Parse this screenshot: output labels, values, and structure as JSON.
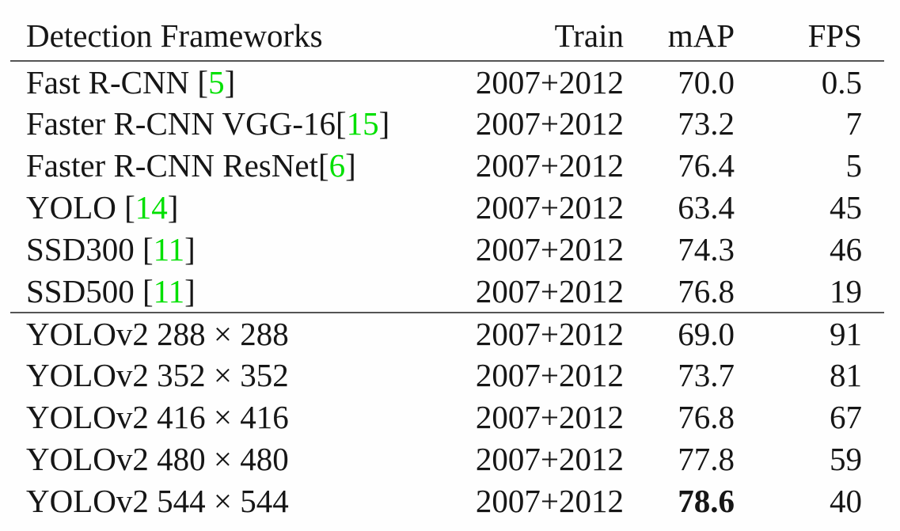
{
  "table": {
    "columns": [
      "Detection Frameworks",
      "Train",
      "mAP",
      "FPS"
    ],
    "rows": [
      {
        "pre": "Fast R-CNN [",
        "cite": "5",
        "post": "]",
        "train": "2007+2012",
        "map": "70.0",
        "fps": "0.5"
      },
      {
        "pre": "Faster R-CNN VGG-16[",
        "cite": "15",
        "post": "]",
        "train": "2007+2012",
        "map": "73.2",
        "fps": "7"
      },
      {
        "pre": "Faster R-CNN ResNet[",
        "cite": "6",
        "post": "]",
        "train": "2007+2012",
        "map": "76.4",
        "fps": "5"
      },
      {
        "pre": "YOLO [",
        "cite": "14",
        "post": "]",
        "train": "2007+2012",
        "map": "63.4",
        "fps": "45"
      },
      {
        "pre": "SSD300 [",
        "cite": "11",
        "post": "]",
        "train": "2007+2012",
        "map": "74.3",
        "fps": "46"
      },
      {
        "pre": "SSD500 [",
        "cite": "11",
        "post": "]",
        "train": "2007+2012",
        "map": "76.8",
        "fps": "19"
      },
      {
        "pre": "YOLOv2 288 × 288",
        "cite": "",
        "post": "",
        "train": "2007+2012",
        "map": "69.0",
        "fps": "91"
      },
      {
        "pre": "YOLOv2 352 × 352",
        "cite": "",
        "post": "",
        "train": "2007+2012",
        "map": "73.7",
        "fps": "81"
      },
      {
        "pre": "YOLOv2 416 × 416",
        "cite": "",
        "post": "",
        "train": "2007+2012",
        "map": "76.8",
        "fps": "67"
      },
      {
        "pre": "YOLOv2 480 × 480",
        "cite": "",
        "post": "",
        "train": "2007+2012",
        "map": "77.8",
        "fps": "59"
      },
      {
        "pre": "YOLOv2 544 × 544",
        "cite": "",
        "post": "",
        "train": "2007+2012",
        "map": "78.6",
        "fps": "40",
        "map_bold": true
      }
    ]
  },
  "colors": {
    "citation_green": "#00e000",
    "text": "#161616",
    "rule": "#555555",
    "background": "#fefefe"
  }
}
